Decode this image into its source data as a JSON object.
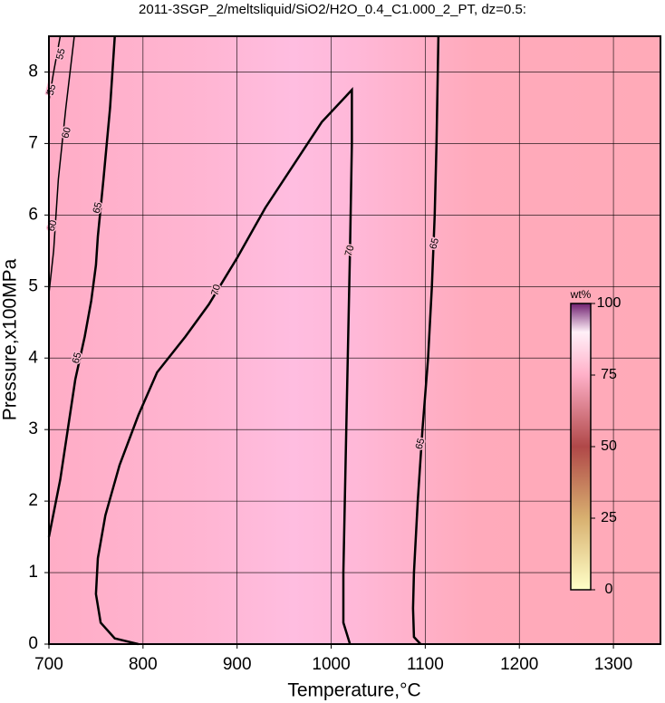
{
  "chart_data": {
    "type": "contour",
    "title": "2011-3SGP_2/meltsliquid/SiO2/H2O_0.4_C1.000_2_PT, dz=0.5:",
    "xlabel": "Temperature,°C",
    "ylabel": "Pressure,x100MPa",
    "xlim": [
      700,
      1350
    ],
    "ylim": [
      0,
      8.5
    ],
    "xticks": [
      700,
      800,
      900,
      1000,
      1100,
      1200,
      1300
    ],
    "yticks": [
      0,
      1,
      2,
      3,
      4,
      5,
      6,
      7,
      8
    ],
    "grid": true,
    "contours": [
      {
        "level": 70,
        "x": [
          795,
          770,
          755,
          750,
          752,
          760,
          775,
          795,
          815,
          845,
          870,
          900,
          930,
          960,
          990,
          1022,
          1022,
          1020,
          1016,
          1013,
          1013,
          1020
        ],
        "y": [
          0,
          0.08,
          0.3,
          0.7,
          1.2,
          1.8,
          2.5,
          3.2,
          3.8,
          4.3,
          4.75,
          5.4,
          6.1,
          6.7,
          7.3,
          7.75,
          7.0,
          5.5,
          3.0,
          1.0,
          0.3,
          0
        ],
        "labels": [
          [
            878,
            4.95
          ],
          [
            1020,
            5.5
          ]
        ]
      },
      {
        "level": 65,
        "x": [
          770,
          765,
          758,
          752,
          750,
          745,
          738,
          728,
          720,
          712,
          700
        ],
        "y": [
          8.5,
          7.5,
          6.5,
          5.7,
          5.3,
          4.8,
          4.3,
          3.7,
          3.0,
          2.3,
          1.5
        ],
        "labels": [
          [
            752,
            6.1
          ],
          [
            730,
            4.0
          ]
        ]
      },
      {
        "level": 65,
        "x": [
          1095,
          1088,
          1087,
          1088,
          1092,
          1097,
          1103,
          1107,
          1110,
          1112,
          1114
        ],
        "y": [
          0,
          0.1,
          0.5,
          1.0,
          2.0,
          3.0,
          4.0,
          5.0,
          6.0,
          7.0,
          8.5
        ],
        "labels": [
          [
            1110,
            5.6
          ],
          [
            1095,
            2.8
          ]
        ]
      },
      {
        "level": 60,
        "x": [
          700,
          705,
          710,
          718,
          727
        ],
        "y": [
          4.9,
          5.5,
          6.5,
          7.5,
          8.5
        ],
        "labels": [
          [
            704,
            5.85
          ],
          [
            719,
            7.15
          ]
        ]
      },
      {
        "level": 55,
        "x": [
          700,
          705,
          712
        ],
        "y": [
          7.6,
          8.0,
          8.5
        ],
        "labels": [
          [
            713,
            8.25
          ],
          [
            703,
            7.75
          ]
        ]
      }
    ],
    "colorbar": {
      "label": "wt%",
      "lim": [
        0,
        100
      ],
      "ticks": [
        0,
        25,
        50,
        75,
        100
      ]
    }
  }
}
